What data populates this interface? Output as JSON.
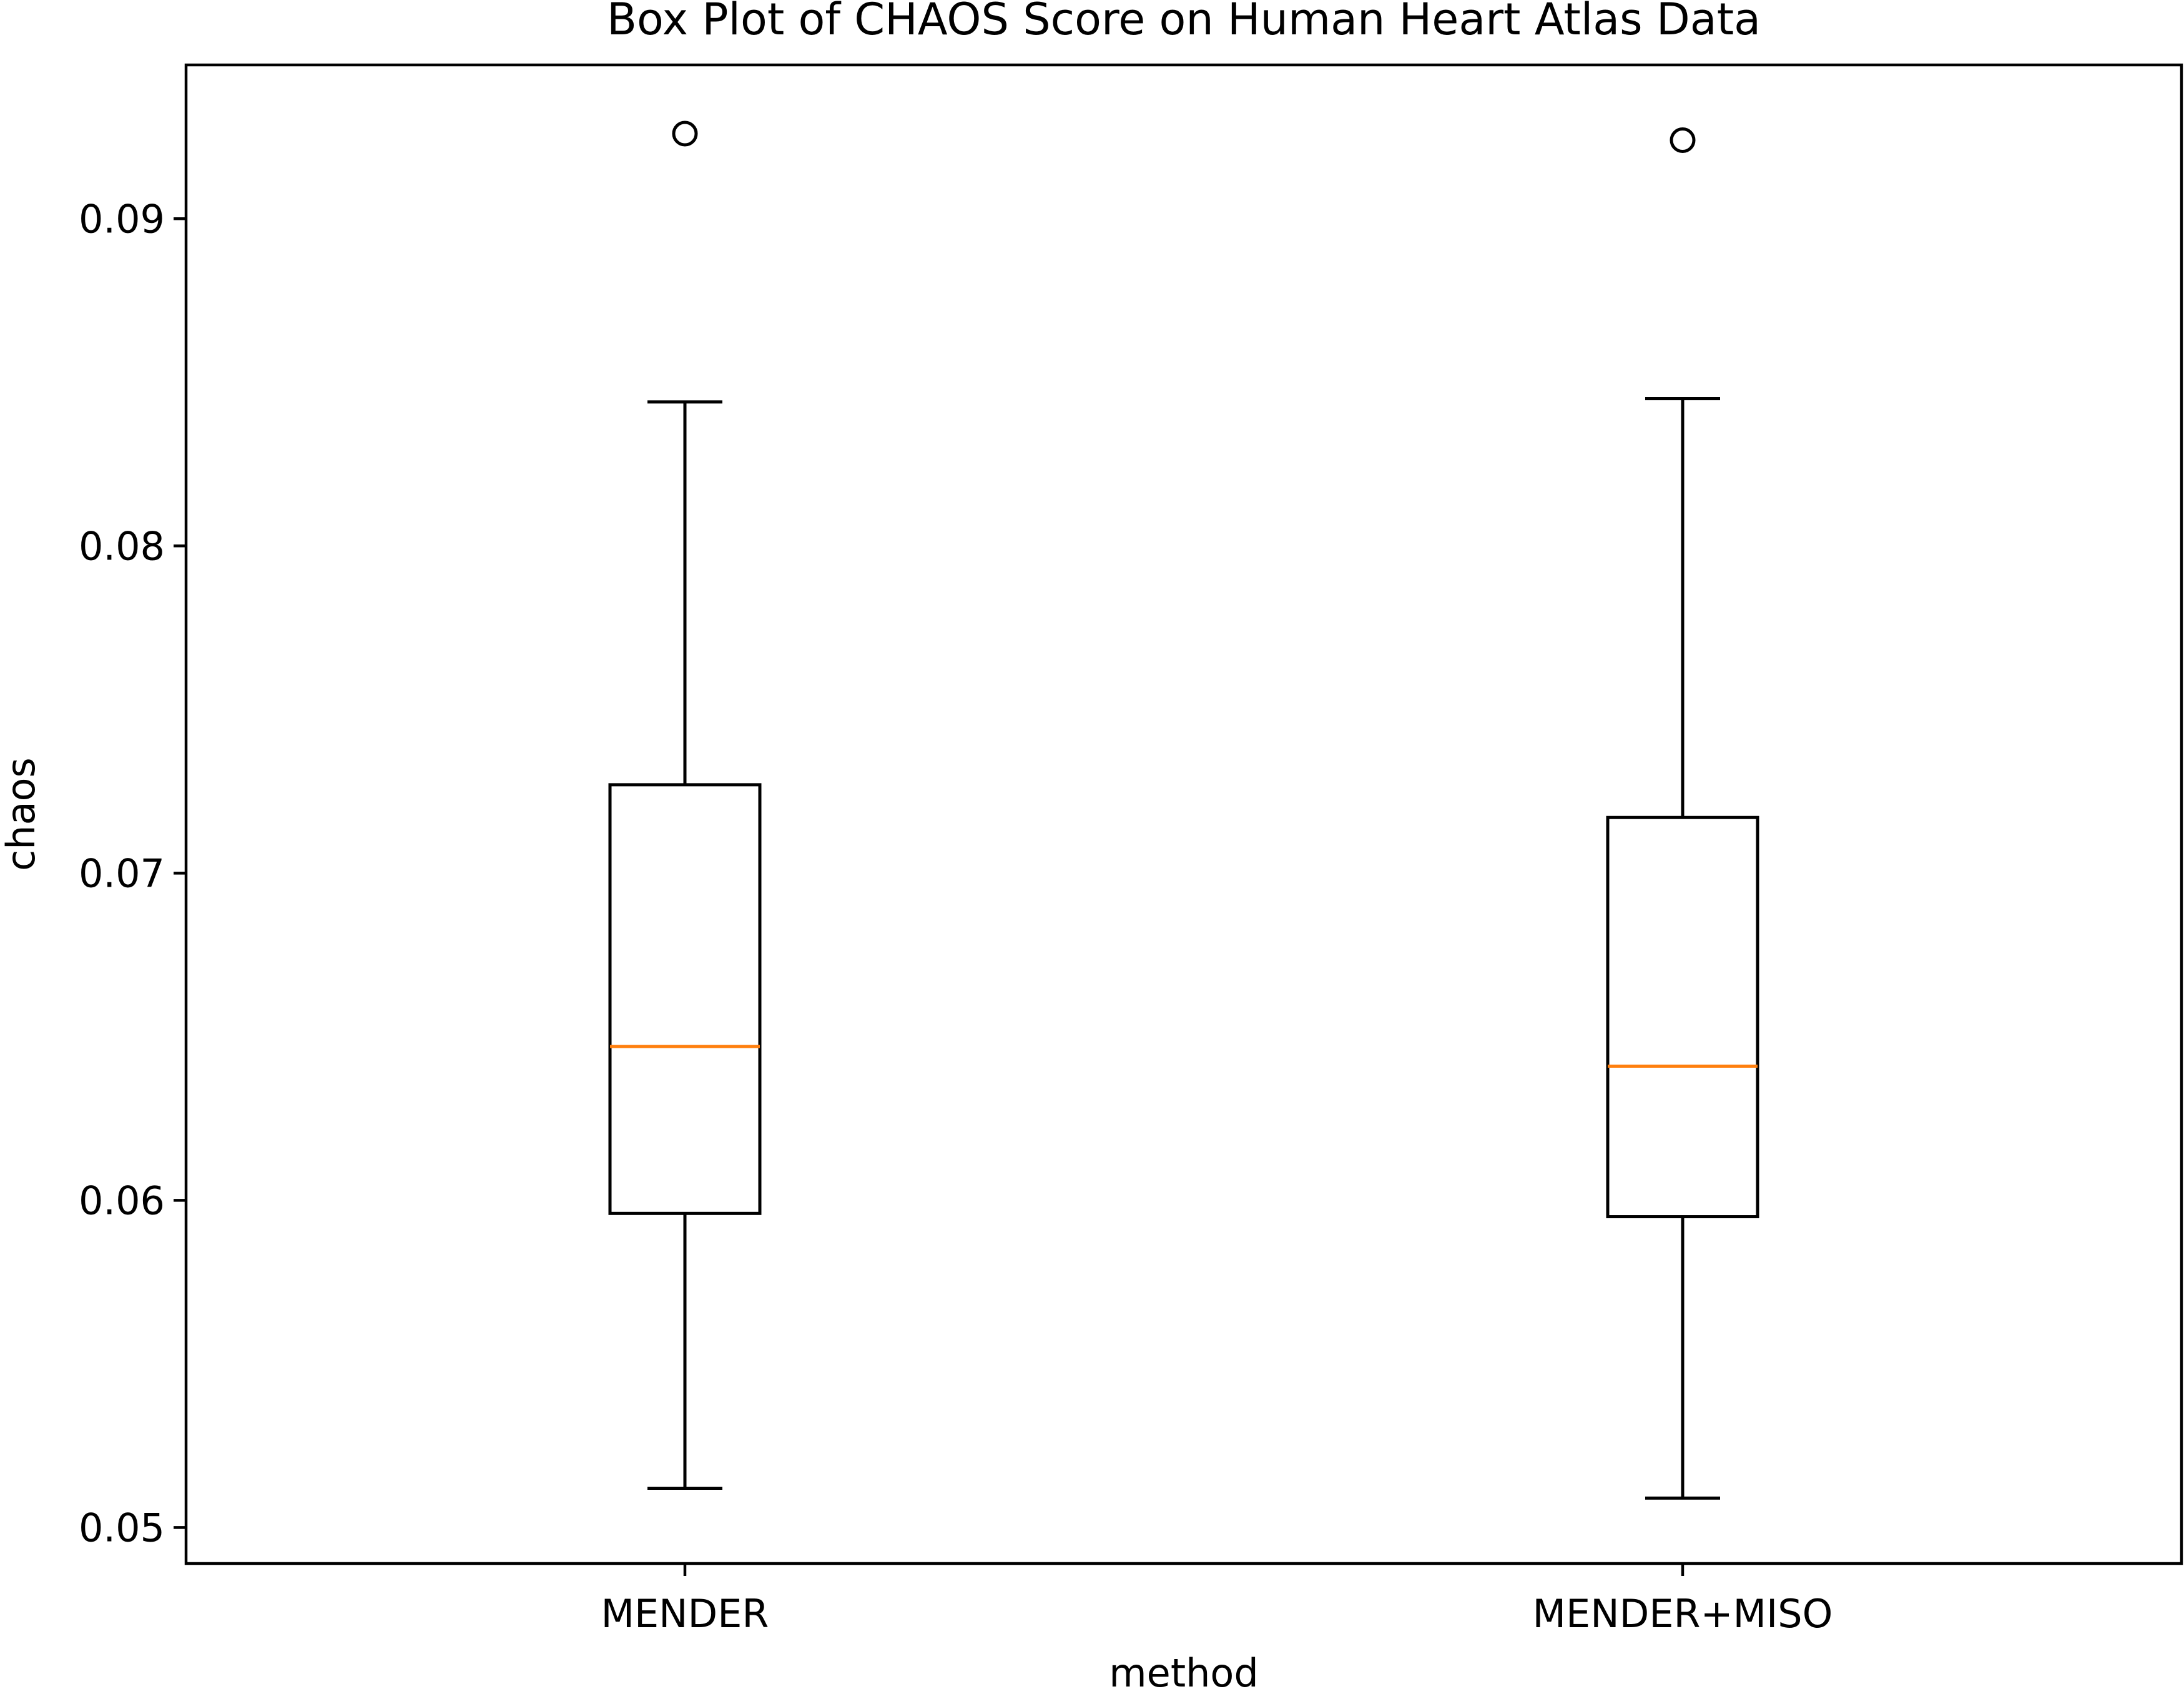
{
  "chart_data": {
    "type": "boxplot",
    "title": "Box Plot of CHAOS Score on Human Heart Atlas Data",
    "xlabel": "method",
    "ylabel": "chaos",
    "ylim": [
      0.0489,
      0.0947
    ],
    "yticks": [
      0.05,
      0.06,
      0.07,
      0.08,
      0.09
    ],
    "ytick_labels": [
      "0.05",
      "0.06",
      "0.07",
      "0.08",
      "0.09"
    ],
    "categories": [
      "MENDER",
      "MENDER+MISO"
    ],
    "boxes": [
      {
        "label": "MENDER",
        "whisker_low": 0.0512,
        "q1": 0.0596,
        "median": 0.0647,
        "q3": 0.0727,
        "whisker_high": 0.0844,
        "outliers": [
          0.0926
        ]
      },
      {
        "label": "MENDER+MISO",
        "whisker_low": 0.0509,
        "q1": 0.0595,
        "median": 0.0641,
        "q3": 0.0717,
        "whisker_high": 0.0845,
        "outliers": [
          0.0924
        ]
      }
    ],
    "grid": false,
    "legend": "none",
    "colors": {
      "box": "#000000",
      "median": "#ff7f0e",
      "outlier": "#000000"
    }
  }
}
